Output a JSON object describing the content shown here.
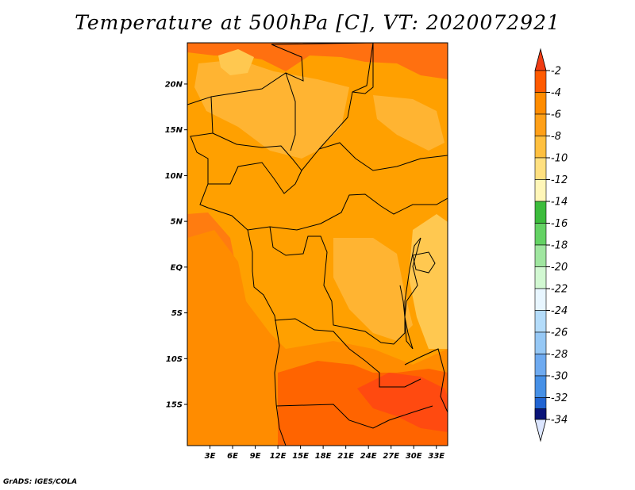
{
  "title": "Temperature at 500hPa [C], VT: 2020072921",
  "credit": "GrADS: IGES/COLA",
  "map": {
    "lon_range": [
      0,
      34.5
    ],
    "lat_range": [
      -19.5,
      24.5
    ],
    "lon_ticks": [
      {
        "lon": 3,
        "label": "3E"
      },
      {
        "lon": 6,
        "label": "6E"
      },
      {
        "lon": 9,
        "label": "9E"
      },
      {
        "lon": 12,
        "label": "12E"
      },
      {
        "lon": 15,
        "label": "15E"
      },
      {
        "lon": 18,
        "label": "18E"
      },
      {
        "lon": 21,
        "label": "21E"
      },
      {
        "lon": 24,
        "label": "24E"
      },
      {
        "lon": 27,
        "label": "27E"
      },
      {
        "lon": 30,
        "label": "30E"
      },
      {
        "lon": 33,
        "label": "33E"
      }
    ],
    "lat_ticks": [
      {
        "lat": 20,
        "label": "20N"
      },
      {
        "lat": 15,
        "label": "15N"
      },
      {
        "lat": 10,
        "label": "10N"
      },
      {
        "lat": 5,
        "label": "5N"
      },
      {
        "lat": 0,
        "label": "EQ"
      },
      {
        "lat": -5,
        "label": "5S"
      },
      {
        "lat": -10,
        "label": "10S"
      },
      {
        "lat": -15,
        "label": "15S"
      }
    ]
  },
  "colorbar": {
    "levels": [
      {
        "label": "-2",
        "color": "#ff5a00"
      },
      {
        "label": "-4",
        "color": "#ff8c00"
      },
      {
        "label": "-6",
        "color": "#ffa018"
      },
      {
        "label": "-8",
        "color": "#ffc040"
      },
      {
        "label": "-10",
        "color": "#ffe080"
      },
      {
        "label": "-12",
        "color": "#fff6b8"
      },
      {
        "label": "-14",
        "color": "#3cbc3c"
      },
      {
        "label": "-16",
        "color": "#64d264"
      },
      {
        "label": "-18",
        "color": "#a0e6a0"
      },
      {
        "label": "-20",
        "color": "#d2f8d2"
      },
      {
        "label": "-22",
        "color": "#e8f6ff"
      },
      {
        "label": "-24",
        "color": "#b4dcfa"
      },
      {
        "label": "-26",
        "color": "#96c8f5"
      },
      {
        "label": "-28",
        "color": "#6eaaf0"
      },
      {
        "label": "-30",
        "color": "#4690e6"
      },
      {
        "label": "-32",
        "color": "#2064d2"
      },
      {
        "label": "-34",
        "color": "#1446b4"
      }
    ],
    "top_color": "#f03c14",
    "bottom_colors": [
      "#0a1478",
      "#dce6ff"
    ]
  },
  "field_colors": {
    "t_minus3": "#ff6400",
    "t_minus4": "#ff8c00",
    "t_minus5": "#ffa000",
    "t_minus6": "#ffb432",
    "t_minus7": "#ffc850",
    "t_minus8": "#ffe088",
    "t_minus2": "#ff4a10"
  }
}
